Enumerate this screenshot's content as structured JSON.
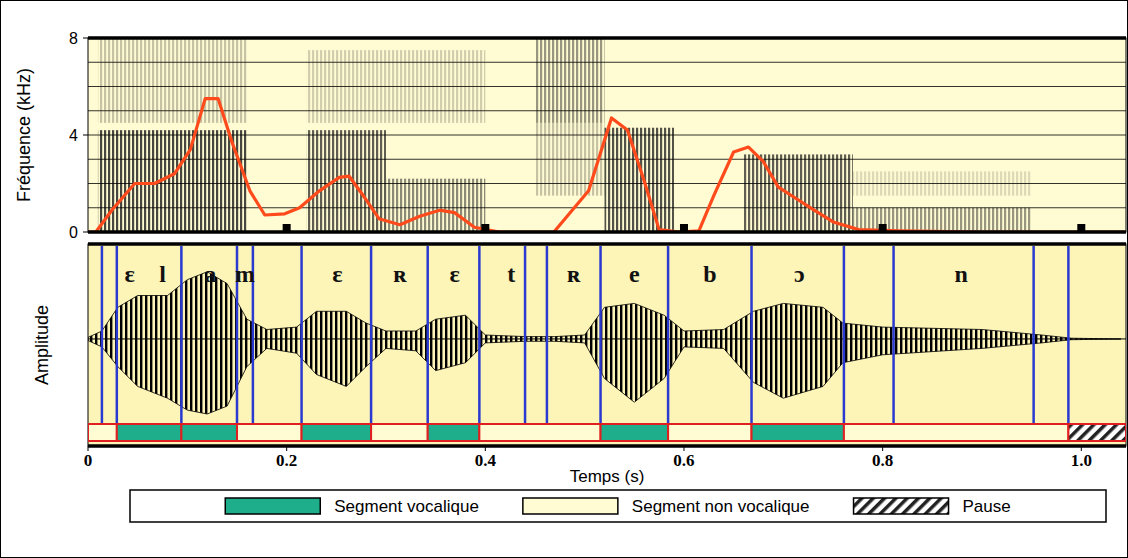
{
  "chart_data": [
    {
      "type": "line",
      "y_label": "Fréquence (kHz)",
      "xlim": [
        0,
        1.045
      ],
      "xticks": [
        0.2,
        0.4,
        0.6,
        0.8,
        1.0
      ],
      "ylim": [
        0,
        8
      ],
      "yticks": [
        0,
        4,
        8
      ],
      "ygrid": [
        1,
        2,
        3,
        4,
        5,
        6,
        7
      ],
      "grid": true,
      "tick_labels": "y",
      "x": [
        0,
        0.008,
        0.024,
        0.047,
        0.067,
        0.087,
        0.103,
        0.118,
        0.131,
        0.145,
        0.163,
        0.178,
        0.198,
        0.213,
        0.233,
        0.253,
        0.263,
        0.278,
        0.293,
        0.314,
        0.334,
        0.354,
        0.369,
        0.389,
        0.414,
        0.469,
        0.504,
        0.527,
        0.543,
        0.56,
        0.575,
        0.595,
        0.615,
        0.63,
        0.65,
        0.665,
        0.68,
        0.695,
        0.716,
        0.731,
        0.751,
        0.776,
        0.816,
        0.896,
        1.043
      ],
      "series": [
        {
          "color": "#ff4a1c",
          "line_style": "solid",
          "values": [
            0,
            0,
            0.9,
            2.0,
            2.0,
            2.4,
            3.4,
            5.5,
            5.5,
            3.7,
            1.7,
            0.7,
            0.75,
            1.0,
            1.7,
            2.25,
            2.3,
            1.45,
            0.55,
            0.3,
            0.65,
            0.9,
            0.8,
            0.2,
            0,
            0,
            1.7,
            4.7,
            4.2,
            2.1,
            0.1,
            0,
            0.05,
            1.5,
            3.3,
            3.5,
            2.9,
            1.85,
            1.3,
            0.9,
            0.4,
            0.1,
            0.05,
            0,
            0
          ]
        }
      ],
      "spectral_energy": [
        {
          "start": 0.01,
          "end": 0.16,
          "low": 0,
          "high": 4.2,
          "level": 0.8
        },
        {
          "start": 0.01,
          "end": 0.16,
          "low": 4.5,
          "high": 8,
          "level": 0.25
        },
        {
          "start": 0.22,
          "end": 0.3,
          "low": 0,
          "high": 4.2,
          "level": 0.7
        },
        {
          "start": 0.3,
          "end": 0.4,
          "low": 0,
          "high": 2.2,
          "level": 0.5
        },
        {
          "start": 0.22,
          "end": 0.4,
          "low": 4.5,
          "high": 7.5,
          "level": 0.2
        },
        {
          "start": 0.45,
          "end": 0.52,
          "low": 4.5,
          "high": 8,
          "level": 0.45
        },
        {
          "start": 0.45,
          "end": 0.52,
          "low": 1.5,
          "high": 4.5,
          "level": 0.25
        },
        {
          "start": 0.52,
          "end": 0.59,
          "low": 0,
          "high": 4.3,
          "level": 0.75
        },
        {
          "start": 0.66,
          "end": 0.77,
          "low": 0,
          "high": 3.2,
          "level": 0.7
        },
        {
          "start": 0.77,
          "end": 0.95,
          "low": 0,
          "high": 1.0,
          "level": 0.45
        },
        {
          "start": 0.77,
          "end": 0.95,
          "low": 1.5,
          "high": 2.5,
          "level": 0.15
        }
      ]
    },
    {
      "type": "segments",
      "x_label": "Temps (s)",
      "y_label": "Amplitude",
      "xlim": [
        0,
        1.045
      ],
      "xticks": [
        0,
        0.2,
        0.4,
        0.6,
        0.8,
        {
          "value": 1,
          "label": "1.0"
        }
      ],
      "ylim": [
        -1,
        1.1
      ],
      "x": [
        0,
        0.014,
        0.03,
        0.05,
        0.08,
        0.1,
        0.12,
        0.14,
        0.16,
        0.18,
        0.21,
        0.23,
        0.26,
        0.28,
        0.3,
        0.33,
        0.35,
        0.38,
        0.4,
        0.44,
        0.47,
        0.5,
        0.52,
        0.55,
        0.58,
        0.6,
        0.64,
        0.67,
        0.7,
        0.74,
        0.76,
        0.8,
        0.9,
        0.96,
        0.99,
        1.04
      ],
      "upper": [
        0.02,
        0.1,
        0.4,
        0.55,
        0.55,
        0.75,
        0.85,
        0.7,
        0.25,
        0.12,
        0.15,
        0.35,
        0.35,
        0.2,
        0.1,
        0.1,
        0.25,
        0.3,
        0.05,
        0.03,
        0.03,
        0.05,
        0.4,
        0.45,
        0.3,
        0.1,
        0.12,
        0.35,
        0.45,
        0.4,
        0.2,
        0.15,
        0.12,
        0.05,
        0.01,
        0
      ],
      "lower": [
        -0.02,
        -0.1,
        -0.35,
        -0.6,
        -0.75,
        -0.9,
        -0.95,
        -0.85,
        -0.35,
        -0.12,
        -0.18,
        -0.45,
        -0.6,
        -0.35,
        -0.12,
        -0.15,
        -0.4,
        -0.3,
        -0.05,
        -0.03,
        -0.03,
        -0.05,
        -0.5,
        -0.8,
        -0.5,
        -0.1,
        -0.12,
        -0.55,
        -0.75,
        -0.6,
        -0.3,
        -0.2,
        -0.12,
        -0.05,
        -0.01,
        0
      ],
      "boundaries": [
        0.014,
        0.029,
        0.094,
        0.15,
        0.166,
        0.215,
        0.285,
        0.342,
        0.394,
        0.44,
        0.462,
        0.516,
        0.584,
        0.668,
        0.761,
        0.811,
        0.952,
        0.987
      ],
      "phonemes": [
        {
          "label": "ɛ",
          "x": 0.042
        },
        {
          "label": "l",
          "x": 0.075
        },
        {
          "label": "a",
          "x": 0.123
        },
        {
          "label": "m",
          "x": 0.158
        },
        {
          "label": "ɛ",
          "x": 0.251
        },
        {
          "label": "ʀ",
          "x": 0.314
        },
        {
          "label": "ɛ",
          "x": 0.369
        },
        {
          "label": "t",
          "x": 0.426
        },
        {
          "label": "ʀ",
          "x": 0.489
        },
        {
          "label": "e",
          "x": 0.55
        },
        {
          "label": "b",
          "x": 0.626
        },
        {
          "label": "ɔ",
          "x": 0.716
        },
        {
          "label": "n",
          "x": 0.879
        }
      ],
      "segments": [
        {
          "kind": "Segment non vocalique",
          "start": 0,
          "end": 0.029
        },
        {
          "kind": "Segment vocalique",
          "start": 0.029,
          "end": 0.094
        },
        {
          "kind": "Segment vocalique",
          "start": 0.094,
          "end": 0.15
        },
        {
          "kind": "Segment non vocalique",
          "start": 0.15,
          "end": 0.215
        },
        {
          "kind": "Segment vocalique",
          "start": 0.215,
          "end": 0.285
        },
        {
          "kind": "Segment non vocalique",
          "start": 0.285,
          "end": 0.342
        },
        {
          "kind": "Segment vocalique",
          "start": 0.342,
          "end": 0.394
        },
        {
          "kind": "Segment non vocalique",
          "start": 0.394,
          "end": 0.516
        },
        {
          "kind": "Segment vocalique",
          "start": 0.516,
          "end": 0.584
        },
        {
          "kind": "Segment non vocalique",
          "start": 0.584,
          "end": 0.668
        },
        {
          "kind": "Segment vocalique",
          "start": 0.668,
          "end": 0.761
        },
        {
          "kind": "Segment non vocalique",
          "start": 0.761,
          "end": 0.987
        },
        {
          "kind": "Pause",
          "start": 0.987,
          "end": 1.045
        }
      ],
      "tick_labels": "x",
      "legend": "bottom",
      "legend_items": [
        {
          "name": "Segment vocalique",
          "color": "#1fae8c"
        },
        {
          "name": "Segment non vocalique",
          "color": "#fffbd2"
        },
        {
          "name": "Pause",
          "color": "#222222"
        }
      ]
    }
  ]
}
